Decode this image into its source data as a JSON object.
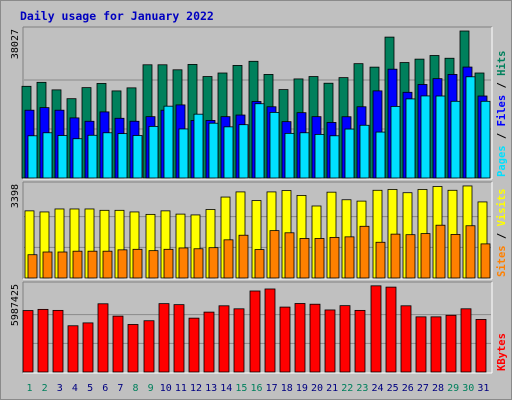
{
  "chart_data": {
    "type": "bar",
    "title": "Daily usage for January 2022",
    "days": [
      1,
      2,
      3,
      4,
      5,
      6,
      7,
      8,
      9,
      10,
      11,
      12,
      13,
      14,
      15,
      16,
      17,
      18,
      19,
      20,
      21,
      22,
      23,
      24,
      25,
      26,
      27,
      28,
      29,
      30,
      31
    ],
    "weekend_days": [
      1,
      2,
      8,
      9,
      15,
      16,
      22,
      23,
      29,
      30
    ],
    "colors": {
      "hits": "#00805c",
      "files": "#0000ff",
      "pages": "#00e0ff",
      "visits": "#ffff00",
      "sites": "#ff8000",
      "kbytes": "#ff0000",
      "title": "#0000c0",
      "weekday": "#000080",
      "weekend": "#00805c"
    },
    "panels": [
      {
        "id": "hits-files-pages",
        "max_label": "38027",
        "ymax": 38027,
        "series": [
          {
            "key": "hits",
            "values": [
              23720,
              24750,
              22800,
              20520,
              23380,
              24460,
              22530,
              23320,
              29290,
              29290,
              27990,
              29380,
              26250,
              27160,
              29120,
              30190,
              26790,
              22870,
              25630,
              26250,
              24520,
              25970,
              29580,
              28680,
              36450,
              29870,
              30750,
              31690,
              30980,
              38025,
              27160
            ]
          },
          {
            "key": "files",
            "values": [
              17540,
              18210,
              17540,
              15550,
              14680,
              17100,
              15450,
              14680,
              15870,
              17540,
              18910,
              14890,
              14890,
              15870,
              16290,
              19790,
              18430,
              14580,
              16900,
              15870,
              14370,
              15850,
              18430,
              22540,
              28150,
              22170,
              24190,
              25700,
              26790,
              28700,
              21210
            ]
          },
          {
            "key": "pages",
            "values": [
              10920,
              11700,
              10990,
              10160,
              11050,
              11700,
              11480,
              10990,
              13350,
              18580,
              12690,
              16510,
              14170,
              13230,
              13790,
              19210,
              16970,
              11540,
              11700,
              11270,
              10920,
              12660,
              13640,
              11880,
              18510,
              20460,
              21230,
              21210,
              19840,
              26180,
              19840
            ]
          }
        ]
      },
      {
        "id": "visits-sites",
        "max_label": "3398",
        "ymax": 3398,
        "series": [
          {
            "key": "visits",
            "values": [
              2480,
              2440,
              2550,
              2550,
              2550,
              2500,
              2500,
              2440,
              2350,
              2480,
              2360,
              2330,
              2530,
              2990,
              3180,
              2860,
              3180,
              3230,
              3050,
              2660,
              3170,
              2890,
              2840,
              3240,
              3270,
              3150,
              3270,
              3380,
              3240,
              3400,
              2810
            ]
          },
          {
            "key": "sites",
            "values": [
              860,
              960,
              960,
              990,
              990,
              990,
              1040,
              1060,
              1010,
              1060,
              1110,
              1080,
              1120,
              1410,
              1580,
              1050,
              1750,
              1670,
              1460,
              1460,
              1500,
              1520,
              1910,
              1320,
              1620,
              1600,
              1640,
              1950,
              1610,
              1930,
              1260
            ]
          }
        ]
      },
      {
        "id": "kbytes",
        "max_label": "5987425",
        "ymax": 5987425,
        "series": [
          {
            "key": "kbytes",
            "values": [
              4280000,
              4360000,
              4290000,
              3220000,
              3420000,
              4750000,
              3890000,
              3310000,
              3570000,
              4760000,
              4690000,
              3750000,
              4170000,
              4610000,
              4400000,
              5640000,
              5780000,
              4520000,
              4770000,
              4720000,
              4320000,
              4620000,
              4290000,
              6000000,
              5910000,
              4610000,
              3840000,
              3840000,
              3950000,
              4400000,
              3660000
            ]
          }
        ]
      }
    ],
    "right_labels": [
      {
        "panel": "hits-files-pages",
        "parts": [
          {
            "text": "Pages",
            "color": "pages"
          },
          {
            "text": " / ",
            "color": "sep"
          },
          {
            "text": "Files",
            "color": "files"
          },
          {
            "text": " / ",
            "color": "sep"
          },
          {
            "text": "Hits",
            "color": "hits"
          }
        ]
      },
      {
        "panel": "visits-sites",
        "parts": [
          {
            "text": "Sites",
            "color": "sites"
          },
          {
            "text": " / ",
            "color": "sep"
          },
          {
            "text": "Visits",
            "color": "visits"
          }
        ]
      },
      {
        "panel": "kbytes",
        "parts": [
          {
            "text": "KBytes",
            "color": "kbytes"
          }
        ]
      }
    ]
  }
}
